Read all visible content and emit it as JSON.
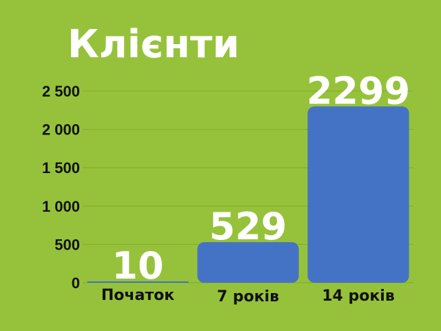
{
  "chart_data": {
    "type": "bar",
    "title": "Клієнти",
    "categories": [
      "Початок",
      "7 років",
      "14 років"
    ],
    "series": [
      {
        "values": [
          10,
          529,
          2299
        ]
      }
    ],
    "data_labels": [
      "10",
      "529",
      "2299"
    ],
    "y_ticks": [
      "0",
      "500",
      "1 000",
      "1 500",
      "2 000",
      "2 500"
    ],
    "y_tick_values": [
      0,
      500,
      1000,
      1500,
      2000,
      2500
    ],
    "ylim": [
      0,
      2500
    ],
    "grid": true,
    "xlabel": "",
    "ylabel": ""
  },
  "colors": {
    "background": "#95c23a",
    "bar": "#4472c4",
    "grid": "#7faa2c",
    "title": "#ffffff",
    "tick_text": "#111111",
    "data_label": "#ffffff"
  }
}
